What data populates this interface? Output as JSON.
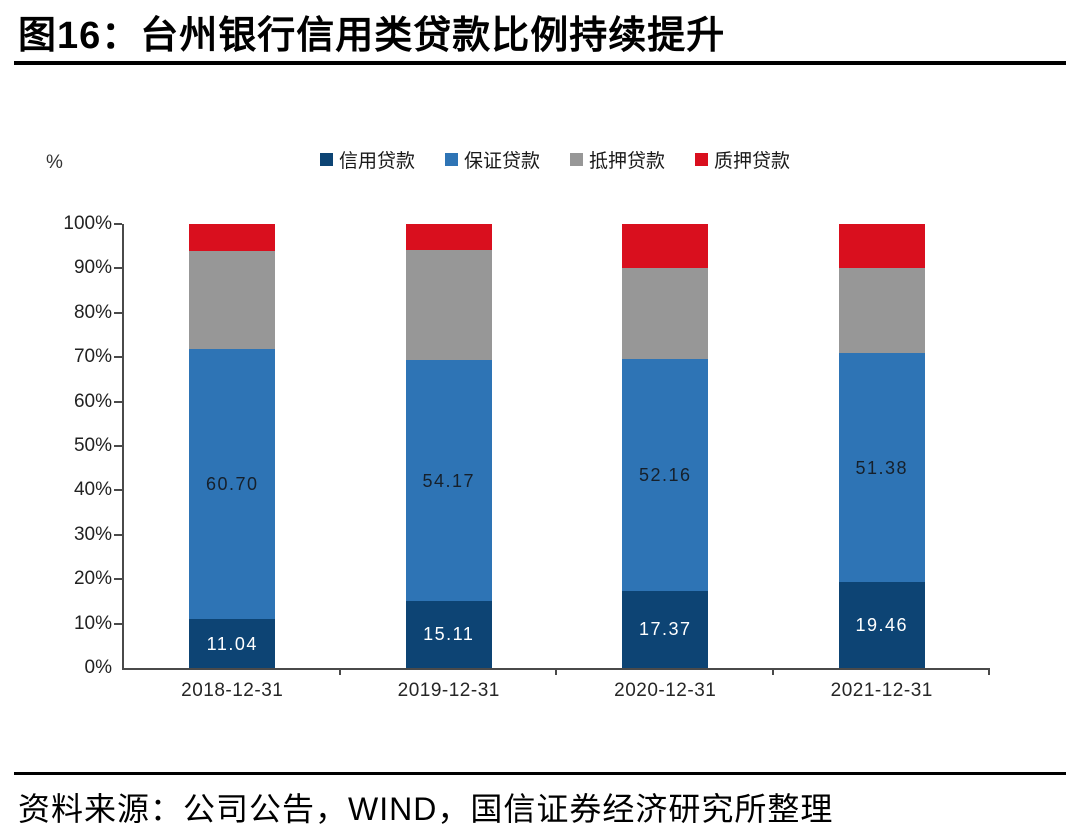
{
  "title": "图16：台州银行信用类贷款比例持续提升",
  "source": "资料来源：公司公告，WIND，国信证券经济研究所整理",
  "colors": {
    "credit_navy": "#0D4474",
    "guarantee_blue": "#2E74B5",
    "mortgage_gray": "#979797",
    "pledge_red": "#D90F1E",
    "axis": "#4a4a4a",
    "title_rule": "#000000"
  },
  "chart_data": {
    "type": "bar",
    "stacked": true,
    "unit": "%",
    "title": "台州银行信用类贷款比例持续提升",
    "categories": [
      "2018-12-31",
      "2019-12-31",
      "2020-12-31",
      "2021-12-31"
    ],
    "series": [
      {
        "key": "credit",
        "name": "信用贷款",
        "color": "#0D4474",
        "values": [
          11.04,
          15.11,
          17.37,
          19.46
        ],
        "labels": [
          "11.04",
          "15.11",
          "17.37",
          "19.46"
        ],
        "label_color": "#FFFFFF"
      },
      {
        "key": "guarantee",
        "name": "保证贷款",
        "color": "#2E74B5",
        "values": [
          60.7,
          54.17,
          52.16,
          51.38
        ],
        "labels": [
          "60.70",
          "54.17",
          "52.16",
          "51.38"
        ],
        "label_color": "#16202B"
      },
      {
        "key": "mortgage",
        "name": "抵押贷款",
        "color": "#979797",
        "values": [
          22.26,
          24.92,
          20.47,
          19.36
        ]
      },
      {
        "key": "pledge",
        "name": "质押贷款",
        "color": "#D90F1E",
        "values": [
          6.0,
          5.8,
          10.0,
          9.8
        ]
      }
    ],
    "ylim": [
      0,
      100
    ],
    "yticks": [
      "0%",
      "10%",
      "20%",
      "30%",
      "40%",
      "50%",
      "60%",
      "70%",
      "80%",
      "90%",
      "100%"
    ],
    "legend_position": "top",
    "grid": false
  }
}
